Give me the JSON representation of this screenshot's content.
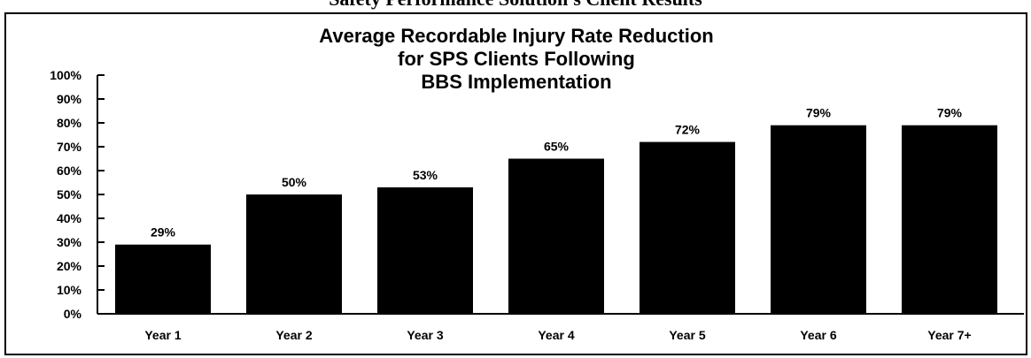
{
  "page_title": "Safety Performance Solution's Client Results",
  "chart_data": {
    "type": "bar",
    "title_lines": [
      "Average Recordable Injury Rate Reduction",
      "for SPS Clients Following",
      "BBS Implementation"
    ],
    "categories": [
      "Year 1",
      "Year 2",
      "Year 3",
      "Year 4",
      "Year 5",
      "Year 6",
      "Year 7+"
    ],
    "values": [
      29,
      50,
      53,
      65,
      72,
      79,
      79
    ],
    "data_labels": [
      "29%",
      "50%",
      "53%",
      "65%",
      "72%",
      "79%",
      "79%"
    ],
    "ylim": [
      0,
      100
    ],
    "yticks": [
      "0%",
      "10%",
      "20%",
      "30%",
      "40%",
      "50%",
      "60%",
      "70%",
      "80%",
      "90%",
      "100%"
    ],
    "bar_color": "#000000",
    "grid": false,
    "legend": false
  }
}
